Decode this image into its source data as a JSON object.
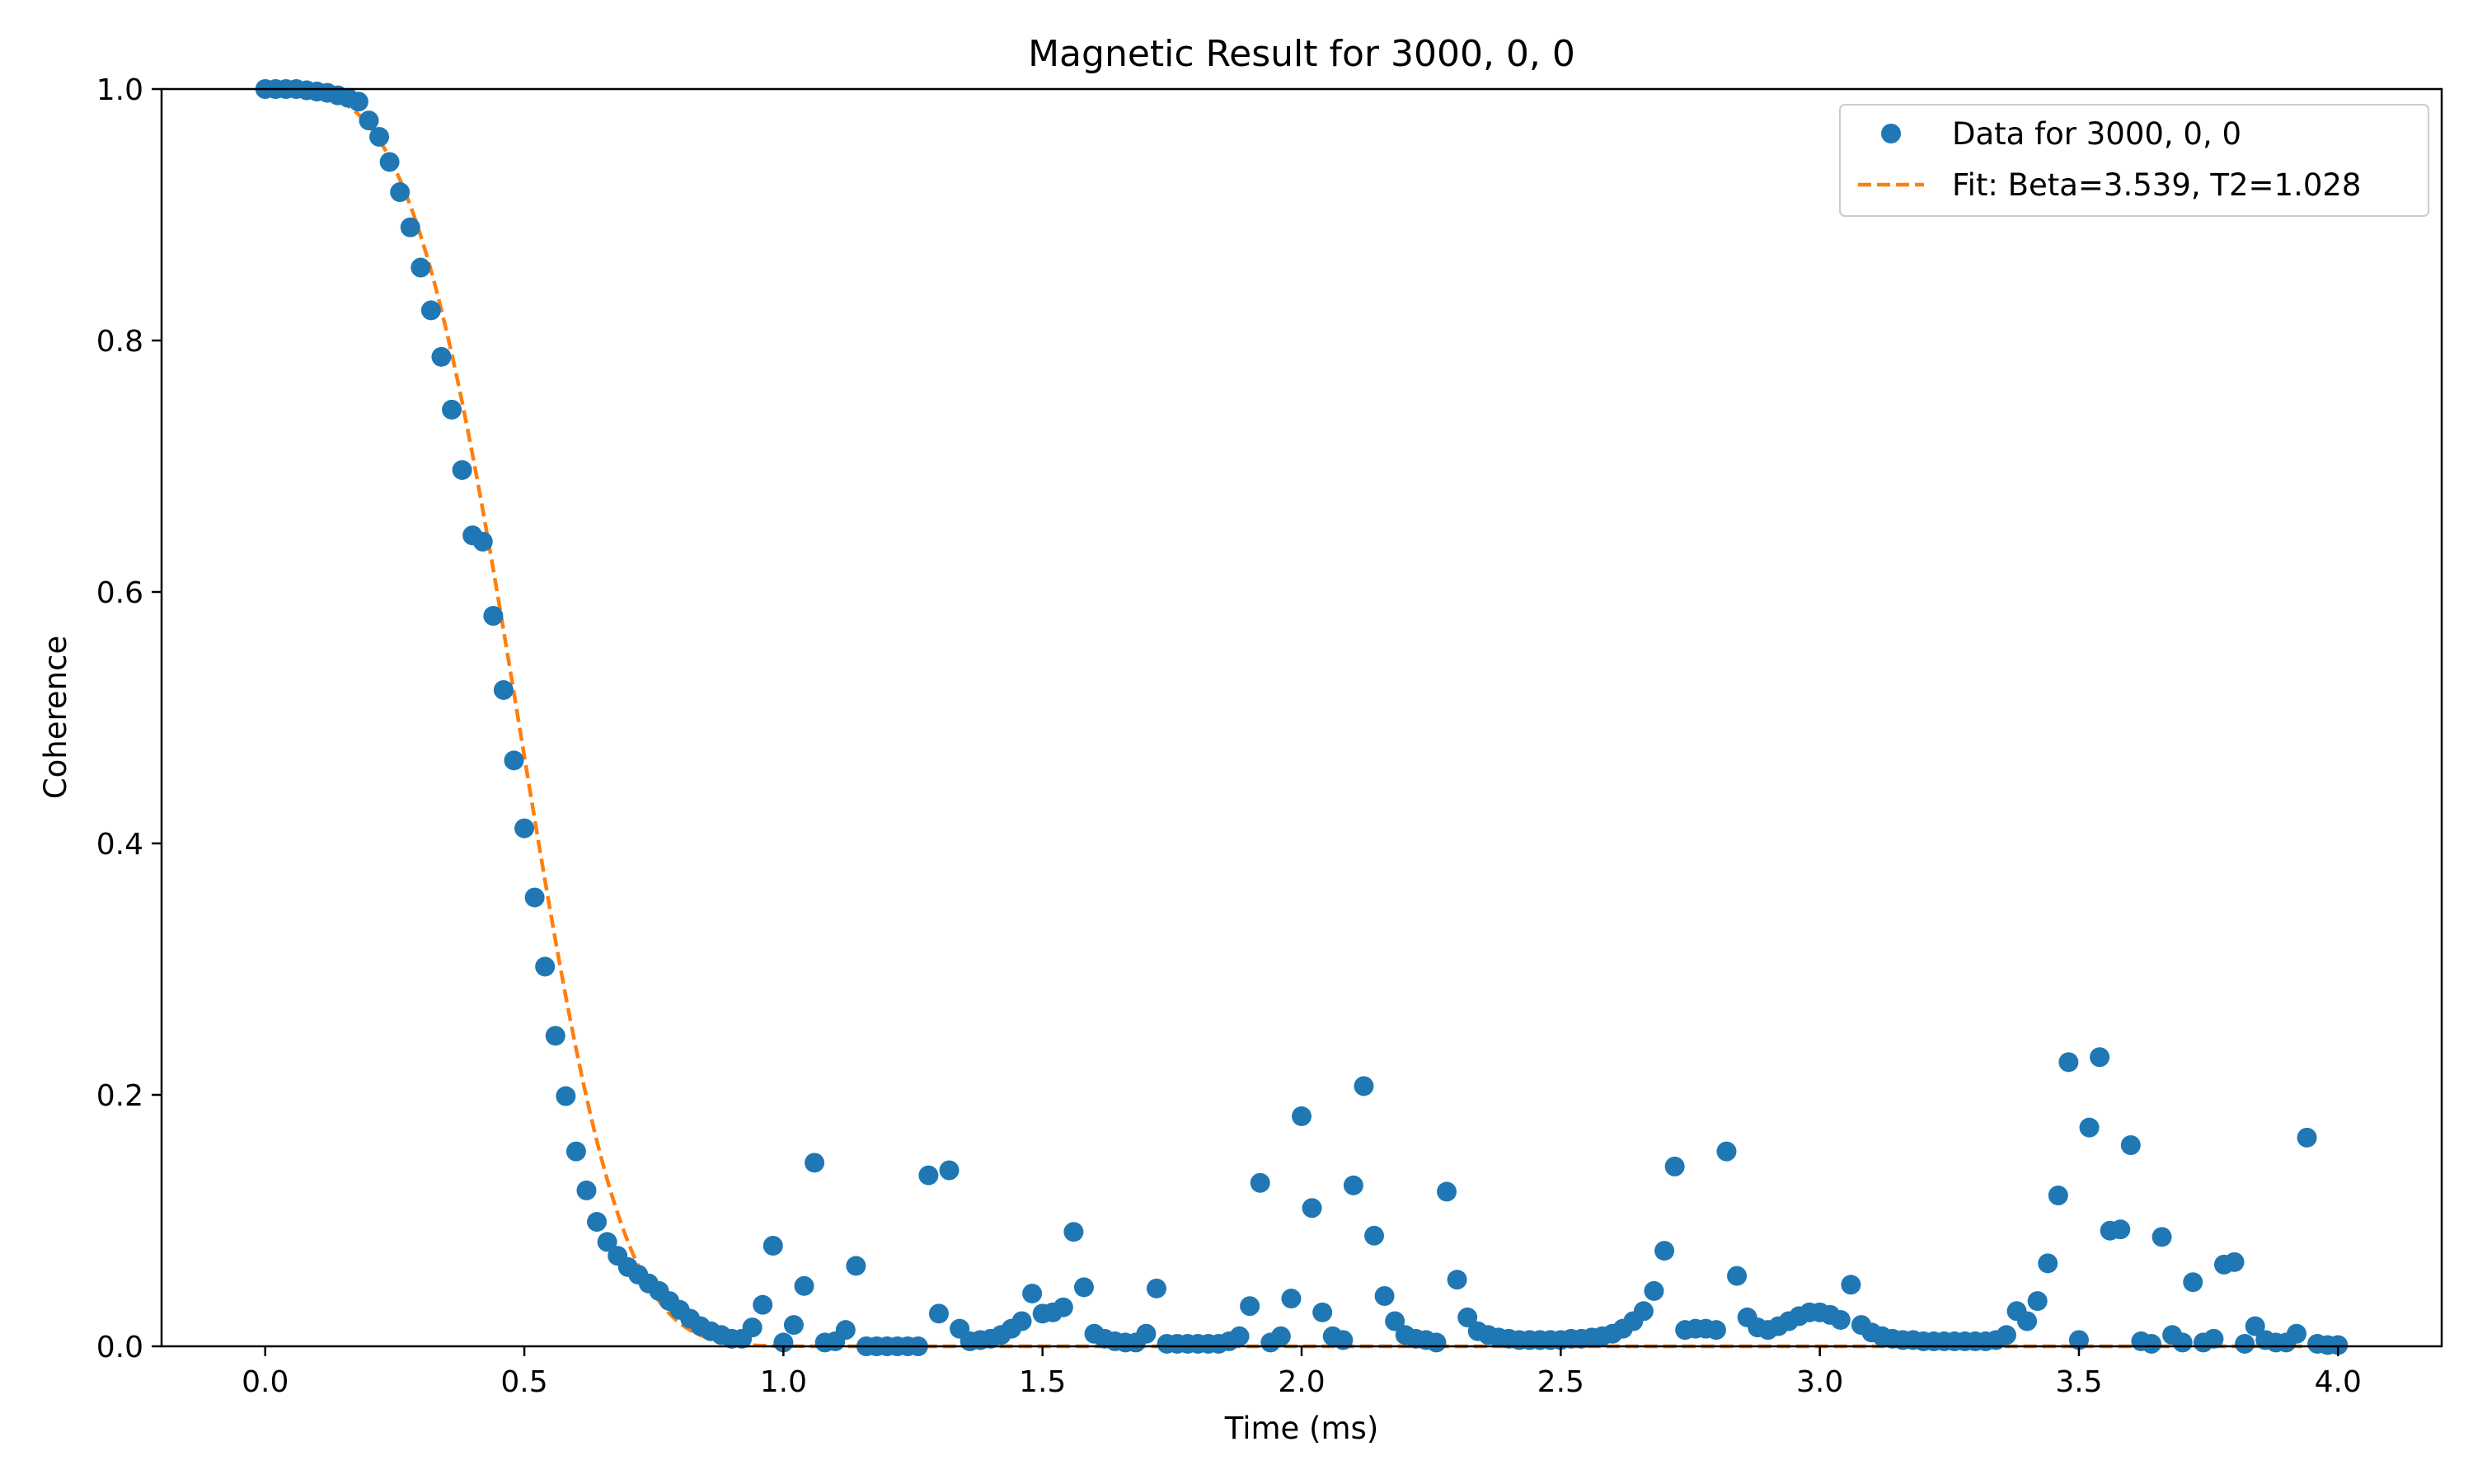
{
  "chart_data": {
    "type": "scatter",
    "title": "Magnetic Result for 3000, 0, 0",
    "xlabel": "Time (ms)",
    "ylabel": "Coherence",
    "xlim": [
      -0.2,
      4.2
    ],
    "ylim": [
      0.0,
      1.0
    ],
    "xticks": [
      0.0,
      0.5,
      1.0,
      1.5,
      2.0,
      2.5,
      3.0,
      3.5,
      4.0
    ],
    "xtick_labels": [
      "0.0",
      "0.5",
      "1.0",
      "1.5",
      "2.0",
      "2.5",
      "3.0",
      "3.5",
      "4.0"
    ],
    "yticks": [
      0.0,
      0.2,
      0.4,
      0.6,
      0.8,
      1.0
    ],
    "ytick_labels": [
      "0.0",
      "0.2",
      "0.4",
      "0.6",
      "0.8",
      "1.0"
    ],
    "grid": false,
    "legend_position": "top-right",
    "series": [
      {
        "name": "Data for 3000, 0, 0",
        "kind": "markers",
        "color": "#1f77b4",
        "points": [
          [
            0.0,
            1.0
          ],
          [
            0.02,
            1.0
          ],
          [
            0.04,
            1.0
          ],
          [
            0.06,
            1.0
          ],
          [
            0.08,
            0.999
          ],
          [
            0.1,
            0.998
          ],
          [
            0.12,
            0.997
          ],
          [
            0.14,
            0.995
          ],
          [
            0.16,
            0.993
          ],
          [
            0.18,
            0.99
          ],
          [
            0.2,
            0.975
          ],
          [
            0.22,
            0.962
          ],
          [
            0.24,
            0.942
          ],
          [
            0.26,
            0.918
          ],
          [
            0.28,
            0.89
          ],
          [
            0.3,
            0.858
          ],
          [
            0.32,
            0.824
          ],
          [
            0.34,
            0.787
          ],
          [
            0.36,
            0.745
          ],
          [
            0.38,
            0.697
          ],
          [
            0.4,
            0.645
          ],
          [
            0.42,
            0.64
          ],
          [
            0.44,
            0.581
          ],
          [
            0.46,
            0.522
          ],
          [
            0.48,
            0.466
          ],
          [
            0.5,
            0.412
          ],
          [
            0.52,
            0.357
          ],
          [
            0.54,
            0.302
          ],
          [
            0.56,
            0.247
          ],
          [
            0.58,
            0.199
          ],
          [
            0.6,
            0.155
          ],
          [
            0.62,
            0.124
          ],
          [
            0.64,
            0.099
          ],
          [
            0.66,
            0.083
          ],
          [
            0.68,
            0.072
          ],
          [
            0.7,
            0.063
          ],
          [
            0.72,
            0.057
          ],
          [
            0.74,
            0.05
          ],
          [
            0.76,
            0.044
          ],
          [
            0.78,
            0.036
          ],
          [
            0.8,
            0.029
          ],
          [
            0.82,
            0.022
          ],
          [
            0.84,
            0.016
          ],
          [
            0.86,
            0.012
          ],
          [
            0.88,
            0.009
          ],
          [
            0.9,
            0.006
          ],
          [
            0.92,
            0.006
          ],
          [
            0.94,
            0.015
          ],
          [
            0.96,
            0.033
          ],
          [
            0.98,
            0.08
          ],
          [
            1.0,
            0.003
          ],
          [
            1.02,
            0.017
          ],
          [
            1.04,
            0.048
          ],
          [
            1.06,
            0.146
          ],
          [
            1.08,
            0.003
          ],
          [
            1.1,
            0.004
          ],
          [
            1.12,
            0.013
          ],
          [
            1.14,
            0.064
          ],
          [
            1.16,
            0.0
          ],
          [
            1.18,
            0.0
          ],
          [
            1.2,
            0.0
          ],
          [
            1.22,
            0.0
          ],
          [
            1.24,
            0.0
          ],
          [
            1.26,
            0.0
          ],
          [
            1.28,
            0.136
          ],
          [
            1.3,
            0.026
          ],
          [
            1.32,
            0.14
          ],
          [
            1.34,
            0.014
          ],
          [
            1.36,
            0.004
          ],
          [
            1.38,
            0.005
          ],
          [
            1.4,
            0.006
          ],
          [
            1.42,
            0.009
          ],
          [
            1.44,
            0.014
          ],
          [
            1.46,
            0.02
          ],
          [
            1.48,
            0.042
          ],
          [
            1.5,
            0.026
          ],
          [
            1.52,
            0.027
          ],
          [
            1.54,
            0.031
          ],
          [
            1.56,
            0.091
          ],
          [
            1.58,
            0.047
          ],
          [
            1.6,
            0.01
          ],
          [
            1.62,
            0.006
          ],
          [
            1.64,
            0.004
          ],
          [
            1.66,
            0.003
          ],
          [
            1.68,
            0.003
          ],
          [
            1.7,
            0.01
          ],
          [
            1.72,
            0.046
          ],
          [
            1.74,
            0.002
          ],
          [
            1.76,
            0.002
          ],
          [
            1.78,
            0.002
          ],
          [
            1.8,
            0.002
          ],
          [
            1.82,
            0.002
          ],
          [
            1.84,
            0.002
          ],
          [
            1.86,
            0.004
          ],
          [
            1.88,
            0.008
          ],
          [
            1.9,
            0.032
          ],
          [
            1.92,
            0.13
          ],
          [
            1.94,
            0.003
          ],
          [
            1.96,
            0.008
          ],
          [
            1.98,
            0.038
          ],
          [
            2.0,
            0.183
          ],
          [
            2.02,
            0.11
          ],
          [
            2.04,
            0.027
          ],
          [
            2.06,
            0.008
          ],
          [
            2.08,
            0.005
          ],
          [
            2.1,
            0.128
          ],
          [
            2.12,
            0.207
          ],
          [
            2.14,
            0.088
          ],
          [
            2.16,
            0.04
          ],
          [
            2.18,
            0.02
          ],
          [
            2.2,
            0.009
          ],
          [
            2.22,
            0.006
          ],
          [
            2.24,
            0.005
          ],
          [
            2.26,
            0.003
          ],
          [
            2.28,
            0.123
          ],
          [
            2.3,
            0.053
          ],
          [
            2.32,
            0.023
          ],
          [
            2.34,
            0.012
          ],
          [
            2.36,
            0.009
          ],
          [
            2.38,
            0.007
          ],
          [
            2.4,
            0.006
          ],
          [
            2.42,
            0.005
          ],
          [
            2.44,
            0.005
          ],
          [
            2.46,
            0.005
          ],
          [
            2.48,
            0.005
          ],
          [
            2.5,
            0.005
          ],
          [
            2.52,
            0.006
          ],
          [
            2.54,
            0.006
          ],
          [
            2.56,
            0.007
          ],
          [
            2.58,
            0.008
          ],
          [
            2.6,
            0.01
          ],
          [
            2.62,
            0.014
          ],
          [
            2.64,
            0.02
          ],
          [
            2.66,
            0.028
          ],
          [
            2.68,
            0.044
          ],
          [
            2.7,
            0.076
          ],
          [
            2.72,
            0.143
          ],
          [
            2.74,
            0.013
          ],
          [
            2.76,
            0.014
          ],
          [
            2.78,
            0.014
          ],
          [
            2.8,
            0.013
          ],
          [
            2.82,
            0.155
          ],
          [
            2.84,
            0.056
          ],
          [
            2.86,
            0.023
          ],
          [
            2.88,
            0.015
          ],
          [
            2.9,
            0.013
          ],
          [
            2.92,
            0.016
          ],
          [
            2.94,
            0.02
          ],
          [
            2.96,
            0.024
          ],
          [
            2.98,
            0.027
          ],
          [
            3.0,
            0.027
          ],
          [
            3.02,
            0.025
          ],
          [
            3.04,
            0.021
          ],
          [
            3.06,
            0.049
          ],
          [
            3.08,
            0.017
          ],
          [
            3.1,
            0.011
          ],
          [
            3.12,
            0.008
          ],
          [
            3.14,
            0.006
          ],
          [
            3.16,
            0.005
          ],
          [
            3.18,
            0.005
          ],
          [
            3.2,
            0.004
          ],
          [
            3.22,
            0.004
          ],
          [
            3.24,
            0.004
          ],
          [
            3.26,
            0.004
          ],
          [
            3.28,
            0.004
          ],
          [
            3.3,
            0.004
          ],
          [
            3.32,
            0.004
          ],
          [
            3.34,
            0.005
          ],
          [
            3.36,
            0.009
          ],
          [
            3.38,
            0.028
          ],
          [
            3.4,
            0.02
          ],
          [
            3.42,
            0.036
          ],
          [
            3.44,
            0.066
          ],
          [
            3.46,
            0.12
          ],
          [
            3.48,
            0.226
          ],
          [
            3.5,
            0.005
          ],
          [
            3.52,
            0.174
          ],
          [
            3.54,
            0.23
          ],
          [
            3.56,
            0.092
          ],
          [
            3.58,
            0.093
          ],
          [
            3.6,
            0.16
          ],
          [
            3.62,
            0.004
          ],
          [
            3.64,
            0.002
          ],
          [
            3.66,
            0.087
          ],
          [
            3.68,
            0.009
          ],
          [
            3.7,
            0.003
          ],
          [
            3.72,
            0.051
          ],
          [
            3.74,
            0.003
          ],
          [
            3.76,
            0.006
          ],
          [
            3.78,
            0.065
          ],
          [
            3.8,
            0.067
          ],
          [
            3.82,
            0.002
          ],
          [
            3.84,
            0.016
          ],
          [
            3.86,
            0.005
          ],
          [
            3.88,
            0.003
          ],
          [
            3.9,
            0.003
          ],
          [
            3.92,
            0.01
          ],
          [
            3.94,
            0.166
          ],
          [
            3.96,
            0.002
          ],
          [
            3.98,
            0.001
          ],
          [
            4.0,
            0.001
          ]
        ]
      },
      {
        "name": "Fit: Beta=3.539, T2=1.028",
        "kind": "dashed-line",
        "color": "#ff7f0e",
        "function": "exp(-(t/T2)^Beta)",
        "note_params_from_legend": true
      }
    ]
  }
}
